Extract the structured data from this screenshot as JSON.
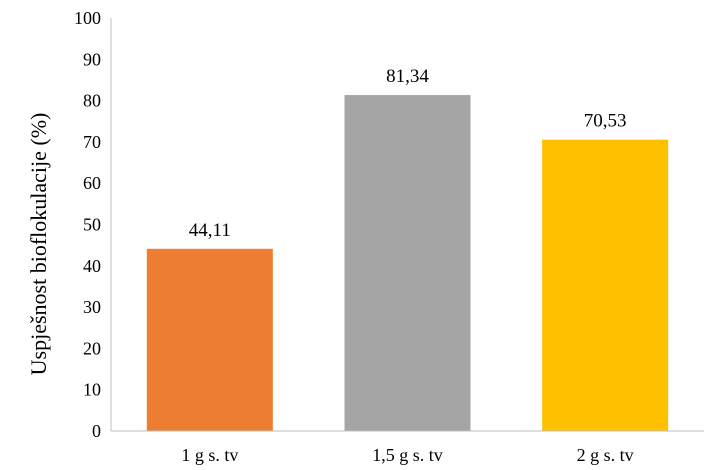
{
  "chart_data": {
    "type": "bar",
    "categories": [
      "1 g s. tv",
      "1,5 g s. tv",
      "2 g s. tv"
    ],
    "values": [
      44.11,
      81.34,
      70.53
    ],
    "data_labels": [
      "44,11",
      "81,34",
      "70,53"
    ],
    "colors": [
      "#ED7D31",
      "#A5A5A5",
      "#FFC000"
    ],
    "title": "",
    "xlabel": "",
    "ylabel": "Uspješnost bioflokulacije (%)",
    "ylim": [
      0,
      100
    ],
    "yticks": [
      0,
      10,
      20,
      30,
      40,
      50,
      60,
      70,
      80,
      90,
      100
    ],
    "grid": false,
    "legend": "none"
  }
}
